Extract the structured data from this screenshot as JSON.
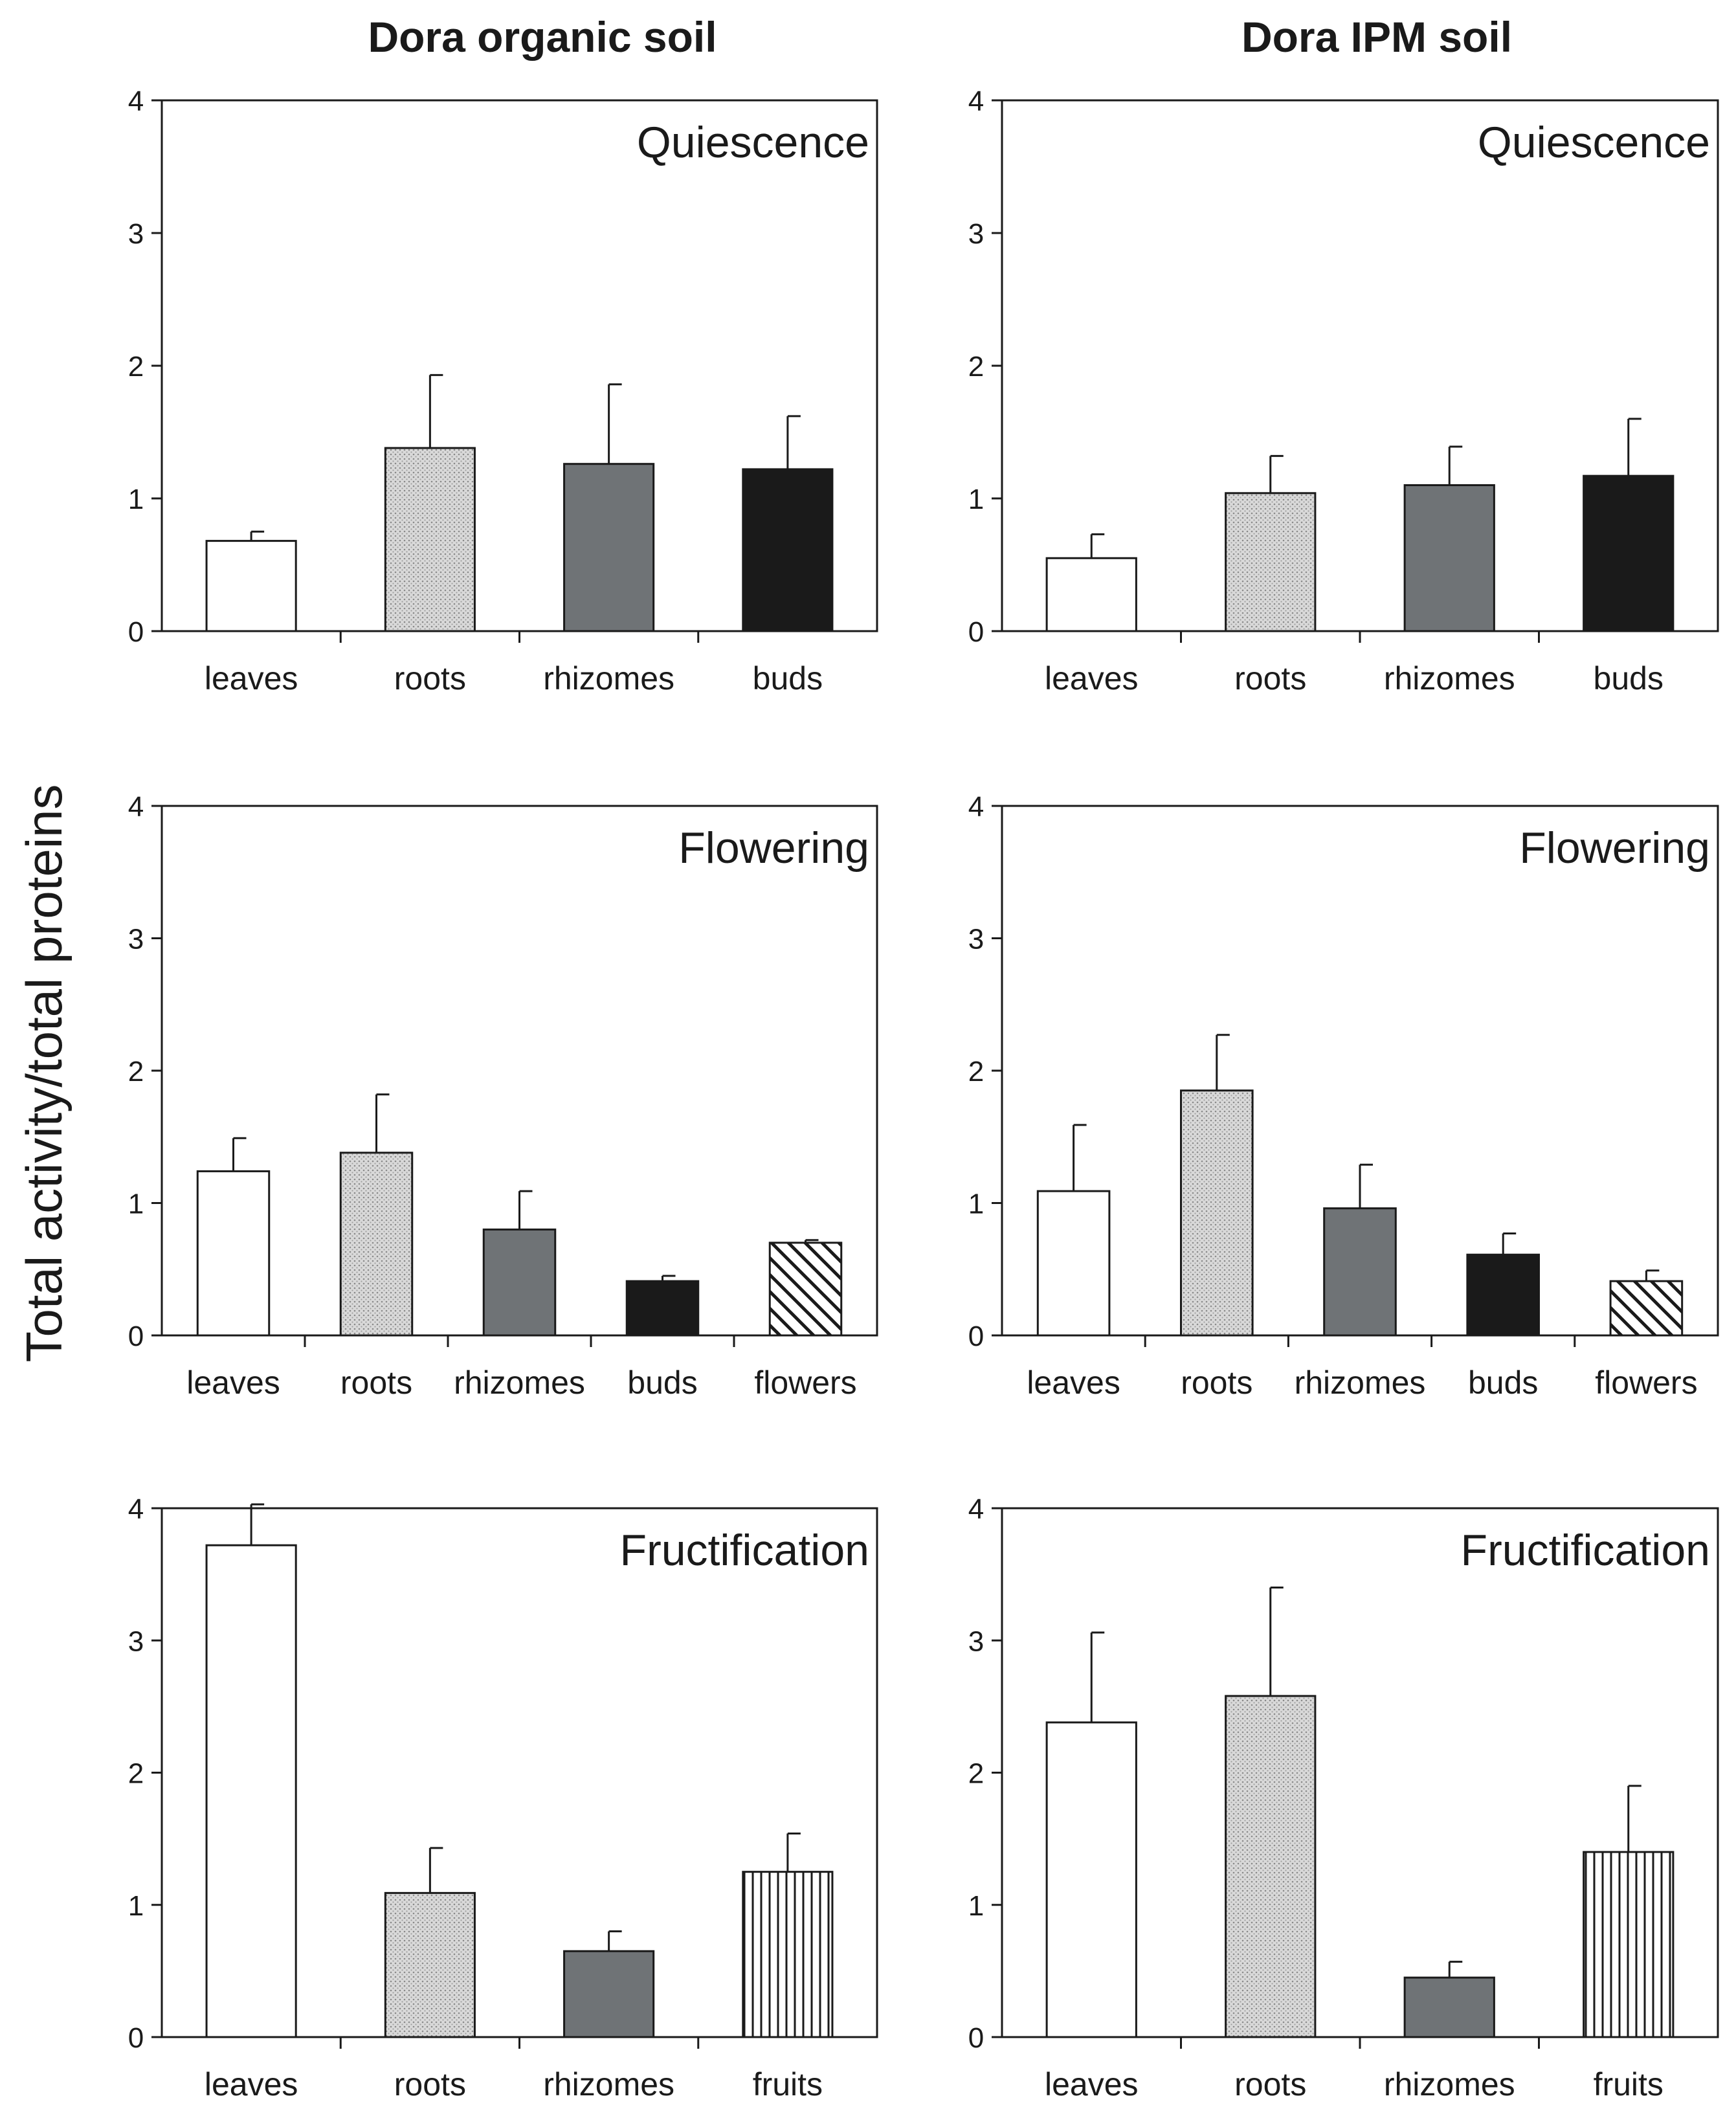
{
  "figure": {
    "column_titles": [
      "Dora organic soil",
      "Dora IPM soil"
    ],
    "ylabel": "Total activity/total proteins"
  },
  "colors": {
    "white": "#ffffff",
    "dots": "#dcdcdc",
    "gray": "#6f7376",
    "black": "#1a1a1a",
    "diag": "#ffffff",
    "vert": "#ffffff",
    "axis": "#1a1a1a"
  },
  "chart_data": [
    {
      "type": "bar",
      "title": "Quiescence",
      "column": "Dora organic soil",
      "categories": [
        "leaves",
        "roots",
        "rhizomes",
        "buds"
      ],
      "values": [
        0.68,
        1.38,
        1.26,
        1.22
      ],
      "errors": [
        0.07,
        0.55,
        0.6,
        0.4
      ],
      "patterns": [
        "white",
        "dots",
        "gray",
        "black"
      ],
      "xlabel": "",
      "ylabel": "Total activity/total proteins",
      "ylim": [
        0,
        4
      ],
      "yticks": [
        0,
        1,
        2,
        3,
        4
      ]
    },
    {
      "type": "bar",
      "title": "Quiescence",
      "column": "Dora IPM soil",
      "categories": [
        "leaves",
        "roots",
        "rhizomes",
        "buds"
      ],
      "values": [
        0.55,
        1.04,
        1.1,
        1.17
      ],
      "errors": [
        0.18,
        0.28,
        0.29,
        0.43
      ],
      "patterns": [
        "white",
        "dots",
        "gray",
        "black"
      ],
      "xlabel": "",
      "ylabel": "Total activity/total proteins",
      "ylim": [
        0,
        4
      ],
      "yticks": [
        0,
        1,
        2,
        3,
        4
      ]
    },
    {
      "type": "bar",
      "title": "Flowering",
      "column": "Dora organic soil",
      "categories": [
        "leaves",
        "roots",
        "rhizomes",
        "buds",
        "flowers"
      ],
      "values": [
        1.24,
        1.38,
        0.8,
        0.41,
        0.7
      ],
      "errors": [
        0.25,
        0.44,
        0.29,
        0.04,
        0.02
      ],
      "patterns": [
        "white",
        "dots",
        "gray",
        "black",
        "diag"
      ],
      "xlabel": "",
      "ylabel": "Total activity/total proteins",
      "ylim": [
        0,
        4
      ],
      "yticks": [
        0,
        1,
        2,
        3,
        4
      ]
    },
    {
      "type": "bar",
      "title": "Flowering",
      "column": "Dora IPM soil",
      "categories": [
        "leaves",
        "roots",
        "rhizomes",
        "buds",
        "flowers"
      ],
      "values": [
        1.09,
        1.85,
        0.96,
        0.61,
        0.41
      ],
      "errors": [
        0.5,
        0.42,
        0.33,
        0.16,
        0.08
      ],
      "patterns": [
        "white",
        "dots",
        "gray",
        "black",
        "diag"
      ],
      "xlabel": "",
      "ylabel": "Total activity/total proteins",
      "ylim": [
        0,
        4
      ],
      "yticks": [
        0,
        1,
        2,
        3,
        4
      ]
    },
    {
      "type": "bar",
      "title": "Fructification",
      "column": "Dora organic soil",
      "categories": [
        "leaves",
        "roots",
        "rhizomes",
        "fruits"
      ],
      "values": [
        3.72,
        1.09,
        0.65,
        1.25
      ],
      "errors": [
        0.32,
        0.34,
        0.15,
        0.29
      ],
      "patterns": [
        "white",
        "dots",
        "gray",
        "vert"
      ],
      "xlabel": "",
      "ylabel": "Total activity/total proteins",
      "ylim": [
        0,
        4
      ],
      "yticks": [
        0,
        1,
        2,
        3,
        4
      ]
    },
    {
      "type": "bar",
      "title": "Fructification",
      "column": "Dora IPM soil",
      "categories": [
        "leaves",
        "roots",
        "rhizomes",
        "fruits"
      ],
      "values": [
        2.38,
        2.58,
        0.45,
        1.4
      ],
      "errors": [
        0.68,
        0.82,
        0.12,
        0.5
      ],
      "patterns": [
        "white",
        "dots",
        "gray",
        "vert"
      ],
      "xlabel": "",
      "ylabel": "Total activity/total proteins",
      "ylim": [
        0,
        4
      ],
      "yticks": [
        0,
        1,
        2,
        3,
        4
      ]
    }
  ]
}
